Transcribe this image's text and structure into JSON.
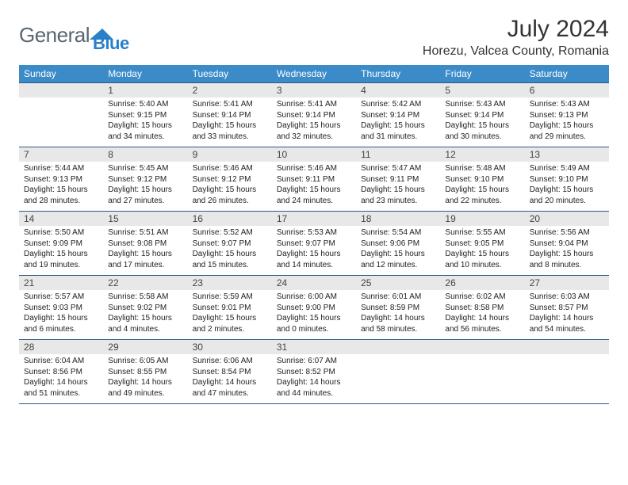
{
  "logo": {
    "text1": "General",
    "text2": "Blue"
  },
  "title": "July 2024",
  "location": "Horezu, Valcea County, Romania",
  "colors": {
    "header_bg": "#3b8bc9",
    "header_text": "#ffffff",
    "daynum_bg": "#e8e8e8",
    "border": "#2a5a8a",
    "logo_gray": "#5a6570",
    "logo_blue": "#2a7fc9"
  },
  "weekdays": [
    "Sunday",
    "Monday",
    "Tuesday",
    "Wednesday",
    "Thursday",
    "Friday",
    "Saturday"
  ],
  "weeks": [
    [
      {
        "num": "",
        "sunrise": "",
        "sunset": "",
        "daylight": ""
      },
      {
        "num": "1",
        "sunrise": "Sunrise: 5:40 AM",
        "sunset": "Sunset: 9:15 PM",
        "daylight": "Daylight: 15 hours and 34 minutes."
      },
      {
        "num": "2",
        "sunrise": "Sunrise: 5:41 AM",
        "sunset": "Sunset: 9:14 PM",
        "daylight": "Daylight: 15 hours and 33 minutes."
      },
      {
        "num": "3",
        "sunrise": "Sunrise: 5:41 AM",
        "sunset": "Sunset: 9:14 PM",
        "daylight": "Daylight: 15 hours and 32 minutes."
      },
      {
        "num": "4",
        "sunrise": "Sunrise: 5:42 AM",
        "sunset": "Sunset: 9:14 PM",
        "daylight": "Daylight: 15 hours and 31 minutes."
      },
      {
        "num": "5",
        "sunrise": "Sunrise: 5:43 AM",
        "sunset": "Sunset: 9:14 PM",
        "daylight": "Daylight: 15 hours and 30 minutes."
      },
      {
        "num": "6",
        "sunrise": "Sunrise: 5:43 AM",
        "sunset": "Sunset: 9:13 PM",
        "daylight": "Daylight: 15 hours and 29 minutes."
      }
    ],
    [
      {
        "num": "7",
        "sunrise": "Sunrise: 5:44 AM",
        "sunset": "Sunset: 9:13 PM",
        "daylight": "Daylight: 15 hours and 28 minutes."
      },
      {
        "num": "8",
        "sunrise": "Sunrise: 5:45 AM",
        "sunset": "Sunset: 9:12 PM",
        "daylight": "Daylight: 15 hours and 27 minutes."
      },
      {
        "num": "9",
        "sunrise": "Sunrise: 5:46 AM",
        "sunset": "Sunset: 9:12 PM",
        "daylight": "Daylight: 15 hours and 26 minutes."
      },
      {
        "num": "10",
        "sunrise": "Sunrise: 5:46 AM",
        "sunset": "Sunset: 9:11 PM",
        "daylight": "Daylight: 15 hours and 24 minutes."
      },
      {
        "num": "11",
        "sunrise": "Sunrise: 5:47 AM",
        "sunset": "Sunset: 9:11 PM",
        "daylight": "Daylight: 15 hours and 23 minutes."
      },
      {
        "num": "12",
        "sunrise": "Sunrise: 5:48 AM",
        "sunset": "Sunset: 9:10 PM",
        "daylight": "Daylight: 15 hours and 22 minutes."
      },
      {
        "num": "13",
        "sunrise": "Sunrise: 5:49 AM",
        "sunset": "Sunset: 9:10 PM",
        "daylight": "Daylight: 15 hours and 20 minutes."
      }
    ],
    [
      {
        "num": "14",
        "sunrise": "Sunrise: 5:50 AM",
        "sunset": "Sunset: 9:09 PM",
        "daylight": "Daylight: 15 hours and 19 minutes."
      },
      {
        "num": "15",
        "sunrise": "Sunrise: 5:51 AM",
        "sunset": "Sunset: 9:08 PM",
        "daylight": "Daylight: 15 hours and 17 minutes."
      },
      {
        "num": "16",
        "sunrise": "Sunrise: 5:52 AM",
        "sunset": "Sunset: 9:07 PM",
        "daylight": "Daylight: 15 hours and 15 minutes."
      },
      {
        "num": "17",
        "sunrise": "Sunrise: 5:53 AM",
        "sunset": "Sunset: 9:07 PM",
        "daylight": "Daylight: 15 hours and 14 minutes."
      },
      {
        "num": "18",
        "sunrise": "Sunrise: 5:54 AM",
        "sunset": "Sunset: 9:06 PM",
        "daylight": "Daylight: 15 hours and 12 minutes."
      },
      {
        "num": "19",
        "sunrise": "Sunrise: 5:55 AM",
        "sunset": "Sunset: 9:05 PM",
        "daylight": "Daylight: 15 hours and 10 minutes."
      },
      {
        "num": "20",
        "sunrise": "Sunrise: 5:56 AM",
        "sunset": "Sunset: 9:04 PM",
        "daylight": "Daylight: 15 hours and 8 minutes."
      }
    ],
    [
      {
        "num": "21",
        "sunrise": "Sunrise: 5:57 AM",
        "sunset": "Sunset: 9:03 PM",
        "daylight": "Daylight: 15 hours and 6 minutes."
      },
      {
        "num": "22",
        "sunrise": "Sunrise: 5:58 AM",
        "sunset": "Sunset: 9:02 PM",
        "daylight": "Daylight: 15 hours and 4 minutes."
      },
      {
        "num": "23",
        "sunrise": "Sunrise: 5:59 AM",
        "sunset": "Sunset: 9:01 PM",
        "daylight": "Daylight: 15 hours and 2 minutes."
      },
      {
        "num": "24",
        "sunrise": "Sunrise: 6:00 AM",
        "sunset": "Sunset: 9:00 PM",
        "daylight": "Daylight: 15 hours and 0 minutes."
      },
      {
        "num": "25",
        "sunrise": "Sunrise: 6:01 AM",
        "sunset": "Sunset: 8:59 PM",
        "daylight": "Daylight: 14 hours and 58 minutes."
      },
      {
        "num": "26",
        "sunrise": "Sunrise: 6:02 AM",
        "sunset": "Sunset: 8:58 PM",
        "daylight": "Daylight: 14 hours and 56 minutes."
      },
      {
        "num": "27",
        "sunrise": "Sunrise: 6:03 AM",
        "sunset": "Sunset: 8:57 PM",
        "daylight": "Daylight: 14 hours and 54 minutes."
      }
    ],
    [
      {
        "num": "28",
        "sunrise": "Sunrise: 6:04 AM",
        "sunset": "Sunset: 8:56 PM",
        "daylight": "Daylight: 14 hours and 51 minutes."
      },
      {
        "num": "29",
        "sunrise": "Sunrise: 6:05 AM",
        "sunset": "Sunset: 8:55 PM",
        "daylight": "Daylight: 14 hours and 49 minutes."
      },
      {
        "num": "30",
        "sunrise": "Sunrise: 6:06 AM",
        "sunset": "Sunset: 8:54 PM",
        "daylight": "Daylight: 14 hours and 47 minutes."
      },
      {
        "num": "31",
        "sunrise": "Sunrise: 6:07 AM",
        "sunset": "Sunset: 8:52 PM",
        "daylight": "Daylight: 14 hours and 44 minutes."
      },
      {
        "num": "",
        "sunrise": "",
        "sunset": "",
        "daylight": ""
      },
      {
        "num": "",
        "sunrise": "",
        "sunset": "",
        "daylight": ""
      },
      {
        "num": "",
        "sunrise": "",
        "sunset": "",
        "daylight": ""
      }
    ]
  ]
}
